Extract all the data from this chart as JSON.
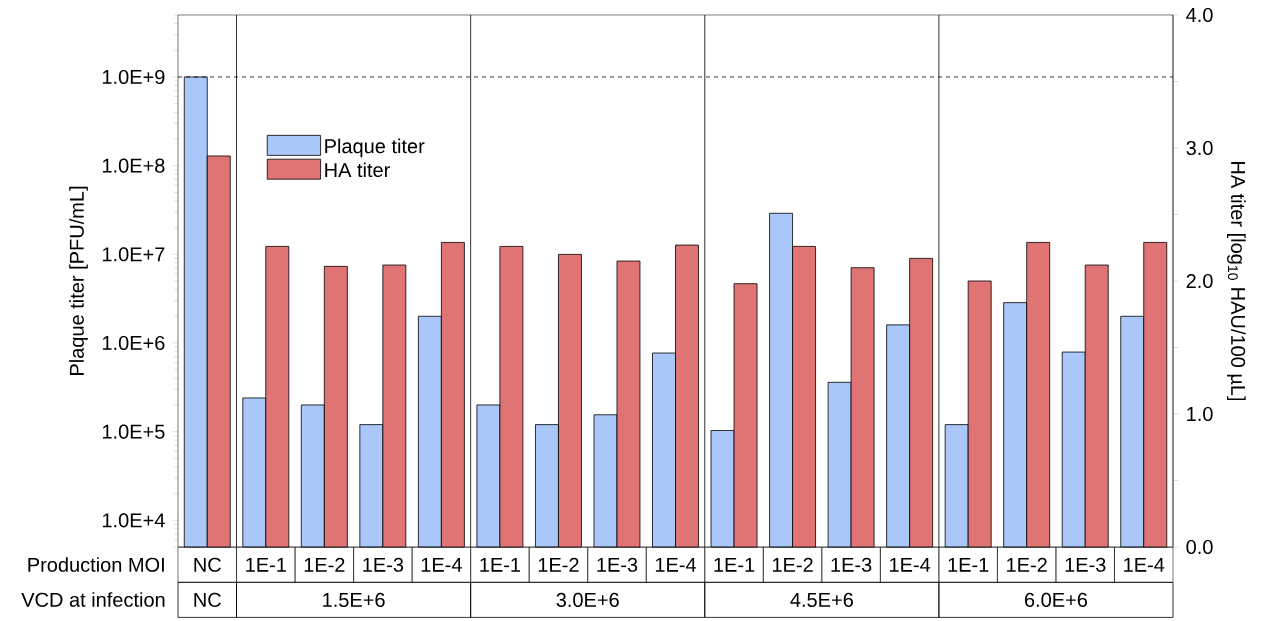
{
  "chart_data": {
    "type": "bar",
    "ylabel": "Plaque titer [PFU/mL]",
    "y2label": "HA titer [log$_{10}$ HAU/100 µL]",
    "categories": [
      "NC",
      "1E-1",
      "1E-2",
      "1E-3",
      "1E-4",
      "1E-1",
      "1E-2",
      "1E-3",
      "1E-4",
      "1E-1",
      "1E-2",
      "1E-3",
      "1E-4",
      "1E-1",
      "1E-2",
      "1E-3",
      "1E-4"
    ],
    "series": [
      {
        "name": "Plaque titer",
        "color": "#a9c7f9",
        "values": [
          1000000000,
          240000,
          200000,
          120000,
          2000000,
          200000,
          120000,
          155000,
          770000,
          103000,
          29000000,
          360000,
          1600000,
          120000,
          2850000,
          790000,
          2000000
        ]
      },
      {
        "name": "HA titer",
        "color": "#e07474",
        "axis": "y2",
        "values": [
          2.94,
          2.26,
          2.11,
          2.12,
          2.29,
          2.26,
          2.2,
          2.15,
          2.27,
          1.98,
          2.26,
          2.1,
          2.17,
          2.0,
          2.29,
          2.12,
          2.29
        ]
      }
    ],
    "log": "y",
    "ylim": [
      5000,
      5000000000
    ],
    "yticks": [
      {
        "value": 10000,
        "label": "1.0E+4"
      },
      {
        "value": 100000,
        "label": "1.0E+5"
      },
      {
        "value": 1000000,
        "label": "1.0E+6"
      },
      {
        "value": 10000000,
        "label": "1.0E+7"
      },
      {
        "value": 100000000,
        "label": "1.0E+8"
      },
      {
        "value": 1000000000,
        "label": "1.0E+9"
      }
    ],
    "y2lim": [
      0,
      4
    ],
    "y2ticks": [
      {
        "value": 0,
        "label": "0.0"
      },
      {
        "value": 0.5,
        "label": null
      },
      {
        "value": 1,
        "label": "1.0"
      },
      {
        "value": 1.5,
        "label": null
      },
      {
        "value": 2,
        "label": "2.0"
      },
      {
        "value": 2.5,
        "label": null
      },
      {
        "value": 3,
        "label": "3.0"
      },
      {
        "value": 3.5,
        "label": null
      },
      {
        "value": 4,
        "label": "4.0"
      }
    ],
    "ref_lines": [
      {
        "axis": "y",
        "value": 1000000000,
        "line_style": "dashed"
      }
    ],
    "legend": "top left",
    "annotations": [
      "Production MOI",
      "VCD at infection",
      "NC",
      "1.5E+6",
      "3.0E+6",
      "4.5E+6",
      "6.0E+6"
    ]
  }
}
